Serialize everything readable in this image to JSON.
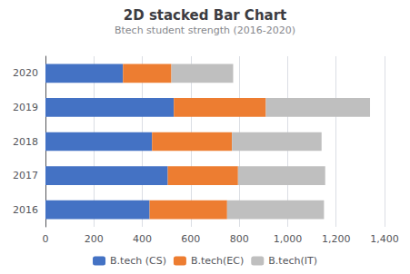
{
  "chart_data": {
    "type": "bar",
    "orientation": "horizontal",
    "stacked": true,
    "title": "2D stacked Bar Chart",
    "subtitle": "Btech student strength (2016-2020)",
    "categories": [
      "2016",
      "2017",
      "2018",
      "2019",
      "2020"
    ],
    "series": [
      {
        "name": "B.tech (CS)",
        "color": "#4472C4",
        "values": [
          430,
          505,
          440,
          530,
          320
        ]
      },
      {
        "name": "B.tech(EC)",
        "color": "#ED7D31",
        "values": [
          320,
          290,
          330,
          380,
          200
        ]
      },
      {
        "name": "B.tech(IT)",
        "color": "#BFBFBF",
        "values": [
          400,
          360,
          370,
          430,
          255
        ]
      }
    ],
    "xlim": [
      0,
      1400
    ],
    "xticks": [
      0,
      200,
      400,
      600,
      800,
      1000,
      1200,
      1400
    ],
    "grid": true,
    "legend": "bottom"
  }
}
